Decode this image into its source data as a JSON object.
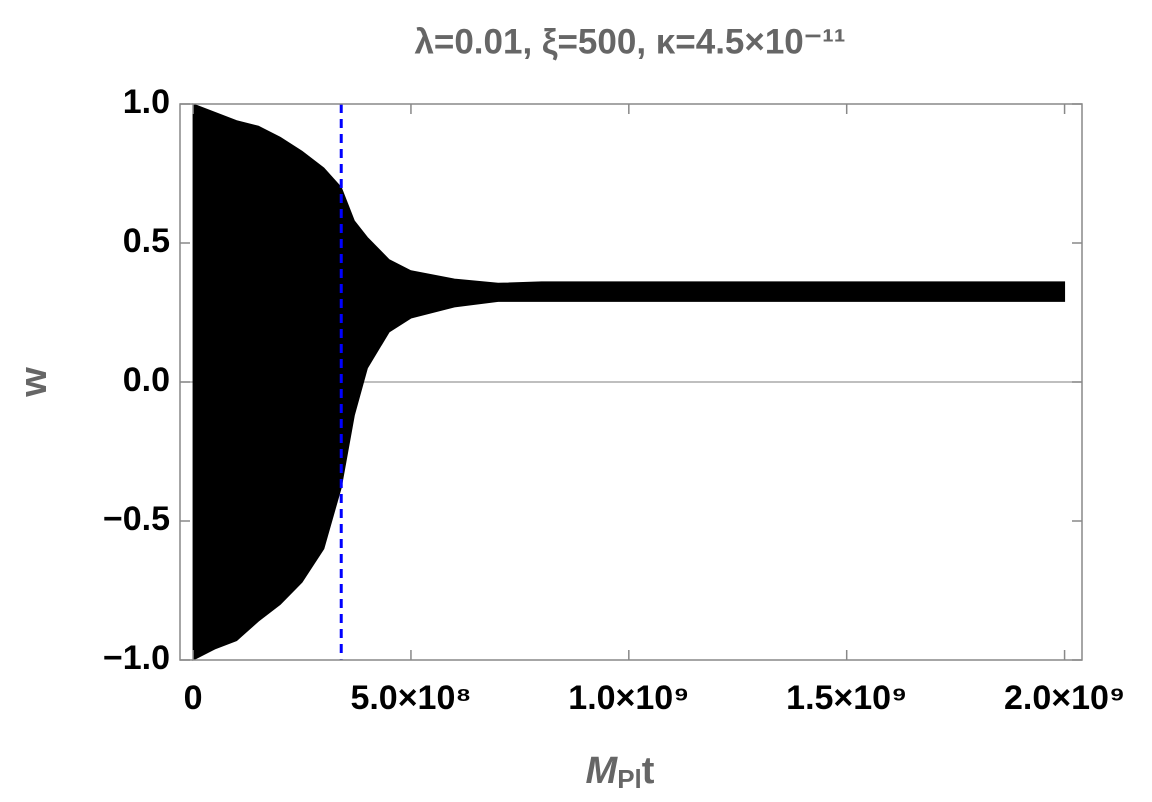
{
  "chart_data": {
    "type": "band",
    "title": "λ=0.01, ξ=500, κ=4.5×10⁻¹¹",
    "xlabel": [
      "M",
      "Pl",
      "t"
    ],
    "ylabel": "w",
    "x": [
      0,
      50000000,
      100000000,
      150000000,
      200000000,
      250000000,
      300000000,
      340000000,
      370000000,
      400000000,
      450000000,
      500000000,
      600000000,
      700000000,
      800000000,
      1000000000,
      1500000000,
      2000000000
    ],
    "upper": [
      1.0,
      0.97,
      0.94,
      0.92,
      0.88,
      0.83,
      0.77,
      0.7,
      0.58,
      0.52,
      0.44,
      0.4,
      0.37,
      0.355,
      0.36,
      0.36,
      0.36,
      0.36
    ],
    "lower": [
      -1.0,
      -0.96,
      -0.93,
      -0.86,
      -0.8,
      -0.72,
      -0.6,
      -0.38,
      -0.12,
      0.05,
      0.18,
      0.23,
      0.27,
      0.29,
      0.29,
      0.29,
      0.29,
      0.29
    ],
    "color": "#000000",
    "vline": {
      "x": 340000000,
      "color": "#0000ff"
    },
    "xlim": [
      -30000000,
      2040000000
    ],
    "ylim": [
      -1,
      1
    ],
    "xticks": [
      {
        "value": 0,
        "label": "0"
      },
      {
        "value": 500000000,
        "label": "5.0×10⁸"
      },
      {
        "value": 1000000000,
        "label": "1.0×10⁹"
      },
      {
        "value": 1500000000,
        "label": "1.5×10⁹"
      },
      {
        "value": 2000000000,
        "label": "2.0×10⁹"
      }
    ],
    "yticks": [
      {
        "value": -1,
        "label": "−1.0"
      },
      {
        "value": -0.5,
        "label": "−0.5"
      },
      {
        "value": 0,
        "label": "0.0"
      },
      0.5,
      {
        "value": 1,
        "label": "1.0"
      }
    ]
  }
}
